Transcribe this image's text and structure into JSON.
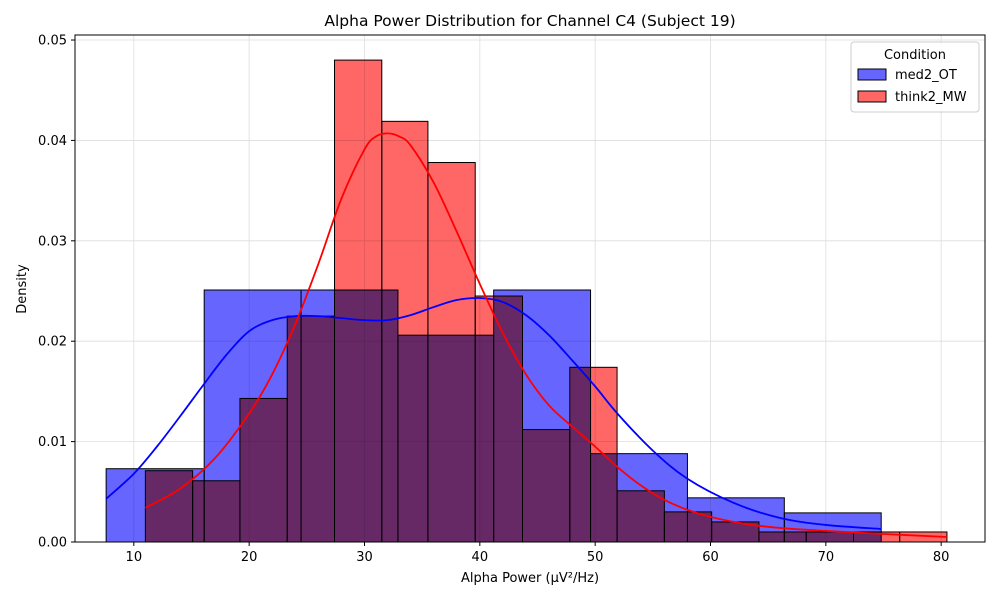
{
  "chart_data": {
    "type": "histogram",
    "title": "Alpha Power Distribution for Channel C4 (Subject 19)",
    "xlabel": "Alpha Power (µV²/Hz)",
    "ylabel": "Density",
    "xlim": [
      4.9,
      83.8
    ],
    "ylim": [
      0,
      0.0505
    ],
    "xticks": [
      10,
      20,
      30,
      40,
      50,
      60,
      70,
      80
    ],
    "yticks": [
      0.0,
      0.01,
      0.02,
      0.03,
      0.04,
      0.05
    ],
    "ytick_labels": [
      "0.00",
      "0.01",
      "0.02",
      "0.03",
      "0.04",
      "0.05"
    ],
    "grid": true,
    "legend": {
      "title": "Condition",
      "placement": "top-right"
    },
    "series": [
      {
        "name": "med2_OT",
        "color": "#6666ff",
        "kde_color": "#0000ff",
        "bins": [
          {
            "x0": 7.6,
            "x1": 16.1,
            "density": 0.0073
          },
          {
            "x0": 16.1,
            "x1": 24.5,
            "density": 0.0251
          },
          {
            "x0": 24.5,
            "x1": 32.9,
            "density": 0.0251
          },
          {
            "x0": 32.9,
            "x1": 41.2,
            "density": 0.0206
          },
          {
            "x0": 41.2,
            "x1": 49.6,
            "density": 0.0251
          },
          {
            "x0": 49.6,
            "x1": 58.0,
            "density": 0.0088
          },
          {
            "x0": 58.0,
            "x1": 66.4,
            "density": 0.0044
          },
          {
            "x0": 66.4,
            "x1": 74.8,
            "density": 0.0029
          }
        ],
        "kde": {
          "x": [
            7.6,
            10,
            12,
            14,
            16,
            18,
            20,
            22,
            24,
            26,
            28,
            30,
            32,
            34,
            36,
            38,
            40,
            42,
            44,
            46,
            48,
            50,
            52,
            55,
            58,
            62,
            66,
            70,
            74.8
          ],
          "y": [
            0.0043,
            0.0068,
            0.0095,
            0.0125,
            0.0156,
            0.0186,
            0.021,
            0.0221,
            0.0225,
            0.0225,
            0.0223,
            0.0221,
            0.0221,
            0.0226,
            0.0234,
            0.0241,
            0.0243,
            0.0239,
            0.0226,
            0.0206,
            0.0181,
            0.0155,
            0.0127,
            0.0091,
            0.0063,
            0.0039,
            0.0024,
            0.0017,
            0.0013
          ]
        }
      },
      {
        "name": "think2_MW",
        "color": "#ff6666",
        "kde_color": "#ff0000",
        "bins": [
          {
            "x0": 11.0,
            "x1": 15.1,
            "density": 0.0071
          },
          {
            "x0": 15.1,
            "x1": 19.2,
            "density": 0.0061
          },
          {
            "x0": 19.2,
            "x1": 23.3,
            "density": 0.0143
          },
          {
            "x0": 23.3,
            "x1": 27.4,
            "density": 0.0225
          },
          {
            "x0": 27.4,
            "x1": 31.5,
            "density": 0.048
          },
          {
            "x0": 31.5,
            "x1": 35.5,
            "density": 0.0419
          },
          {
            "x0": 35.5,
            "x1": 39.6,
            "density": 0.0378
          },
          {
            "x0": 39.6,
            "x1": 43.7,
            "density": 0.0245
          },
          {
            "x0": 43.7,
            "x1": 47.8,
            "density": 0.0112
          },
          {
            "x0": 47.8,
            "x1": 51.9,
            "density": 0.0174
          },
          {
            "x0": 51.9,
            "x1": 56.0,
            "density": 0.0051
          },
          {
            "x0": 56.0,
            "x1": 60.1,
            "density": 0.003
          },
          {
            "x0": 60.1,
            "x1": 64.2,
            "density": 0.002
          },
          {
            "x0": 64.2,
            "x1": 68.3,
            "density": 0.001
          },
          {
            "x0": 68.3,
            "x1": 72.4,
            "density": 0.001
          },
          {
            "x0": 72.4,
            "x1": 76.4,
            "density": 0.001
          },
          {
            "x0": 76.4,
            "x1": 80.5,
            "density": 0.001
          }
        ],
        "kde": {
          "x": [
            11.0,
            14,
            17,
            20,
            22,
            24,
            26,
            28,
            30,
            31,
            32,
            33,
            34,
            36,
            38,
            40,
            42,
            44,
            46,
            48,
            50,
            52,
            54,
            56,
            58,
            60,
            63,
            66,
            70,
            75,
            80.5
          ],
          "y": [
            0.0034,
            0.0053,
            0.0083,
            0.0128,
            0.0167,
            0.0217,
            0.0277,
            0.0342,
            0.0391,
            0.0404,
            0.0407,
            0.0404,
            0.0395,
            0.0358,
            0.0309,
            0.0257,
            0.0208,
            0.0167,
            0.0136,
            0.0115,
            0.0095,
            0.0074,
            0.0056,
            0.0042,
            0.0032,
            0.0025,
            0.0018,
            0.0014,
            0.0011,
            0.0008,
            0.0005
          ]
        }
      }
    ]
  }
}
